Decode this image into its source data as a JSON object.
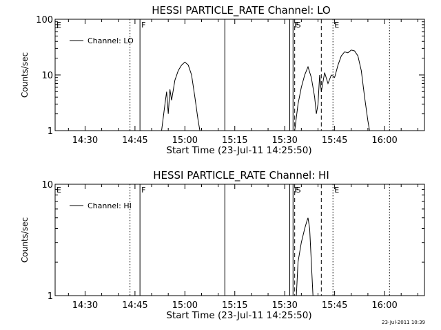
{
  "footer": {
    "timestamp": "23-Jul-2011 10:39"
  },
  "chart_data": [
    {
      "type": "line",
      "title": "HESSI PARTICLE_RATE Channel: LO",
      "xlabel": "Start Time (23-Jul-11 14:25:50)",
      "ylabel": "Counts/sec",
      "y_scale": "log",
      "xlim": [
        "14:21",
        "16:12"
      ],
      "ylim": [
        1,
        100
      ],
      "x_ticks": [
        "14:30",
        "14:45",
        "15:00",
        "15:15",
        "15:30",
        "15:45",
        "16:00"
      ],
      "y_ticks": [
        "1",
        "10",
        "100"
      ],
      "legend": {
        "placement": "top-left",
        "label": "Channel: LO"
      },
      "series": [
        {
          "name": "Channel: LO",
          "segments": [
            {
              "x": [
                "14:53",
                "14:54",
                "14:54.5",
                "14:55",
                "14:55.5",
                "14:56",
                "14:57",
                "14:58",
                "14:59",
                "15:00",
                "15:01",
                "15:02",
                "15:03",
                "15:04",
                "15:04.5"
              ],
              "y": [
                1.0,
                3.0,
                5.0,
                2.0,
                5.5,
                3.5,
                8.0,
                12.0,
                15.0,
                17.0,
                15.0,
                10.0,
                4.0,
                1.5,
                1.0
              ]
            },
            {
              "x": [
                "15:33",
                "15:34",
                "15:35",
                "15:36",
                "15:37",
                "15:38",
                "15:39",
                "15:39.5",
                "15:40",
                "15:40.5",
                "15:41",
                "15:42",
                "15:43",
                "15:44",
                "15:45",
                "15:46",
                "15:47",
                "15:48",
                "15:49",
                "15:50",
                "15:51",
                "15:52",
                "15:53",
                "15:54",
                "15:55",
                "15:55.5"
              ],
              "y": [
                1.0,
                3.0,
                6.0,
                10.0,
                14.0,
                9.0,
                4.0,
                2.0,
                3.0,
                10.0,
                5.0,
                11.0,
                7.0,
                10.0,
                9.0,
                15.0,
                22.0,
                26.0,
                25.0,
                28.0,
                27.0,
                22.0,
                12.0,
                4.0,
                1.5,
                1.0
              ]
            }
          ]
        }
      ],
      "markers": [
        {
          "label": "E",
          "x": "14:21",
          "style": "dotted"
        },
        {
          "label": "",
          "x": "14:43.5",
          "style": "dotted"
        },
        {
          "label": "F",
          "x": "14:46.5",
          "style": "solid"
        },
        {
          "label": "",
          "x": "15:12",
          "style": "solid"
        },
        {
          "label": "",
          "x": "15:31.5",
          "style": "solid"
        },
        {
          "label": "F",
          "x": "15:32.5",
          "style": "solid"
        },
        {
          "label": "S",
          "x": "15:33",
          "style": "dashed"
        },
        {
          "label": "",
          "x": "15:41",
          "style": "dashed"
        },
        {
          "label": "E",
          "x": "15:44.5",
          "style": "dotted"
        },
        {
          "label": "",
          "x": "16:01.5",
          "style": "dotted"
        }
      ]
    },
    {
      "type": "line",
      "title": "HESSI PARTICLE_RATE Channel: HI",
      "xlabel": "Start Time (23-Jul-11 14:25:50)",
      "ylabel": "Counts/sec",
      "y_scale": "log",
      "xlim": [
        "14:21",
        "16:12"
      ],
      "ylim": [
        1,
        10
      ],
      "x_ticks": [
        "14:30",
        "14:45",
        "15:00",
        "15:15",
        "15:30",
        "15:45",
        "16:00"
      ],
      "y_ticks": [
        "1",
        "10"
      ],
      "legend": {
        "placement": "top-left",
        "label": "Channel: HI"
      },
      "series": [
        {
          "name": "Channel: HI",
          "segments": [
            {
              "x": [
                "15:33.5",
                "15:34",
                "15:35",
                "15:36",
                "15:36.5",
                "15:37",
                "15:37.5",
                "15:38",
                "15:38.5"
              ],
              "y": [
                1.0,
                2.0,
                3.0,
                4.0,
                4.5,
                5.0,
                4.0,
                2.0,
                1.0
              ]
            }
          ]
        }
      ],
      "markers": [
        {
          "label": "E",
          "x": "14:21",
          "style": "dotted"
        },
        {
          "label": "",
          "x": "14:43.5",
          "style": "dotted"
        },
        {
          "label": "F",
          "x": "14:46.5",
          "style": "solid"
        },
        {
          "label": "",
          "x": "15:12",
          "style": "solid"
        },
        {
          "label": "",
          "x": "15:31.5",
          "style": "solid"
        },
        {
          "label": "F",
          "x": "15:32.5",
          "style": "solid"
        },
        {
          "label": "S",
          "x": "15:33",
          "style": "dashed"
        },
        {
          "label": "",
          "x": "15:41",
          "style": "dashed"
        },
        {
          "label": "E",
          "x": "15:44.5",
          "style": "dotted"
        },
        {
          "label": "",
          "x": "16:01.5",
          "style": "dotted"
        }
      ]
    }
  ]
}
